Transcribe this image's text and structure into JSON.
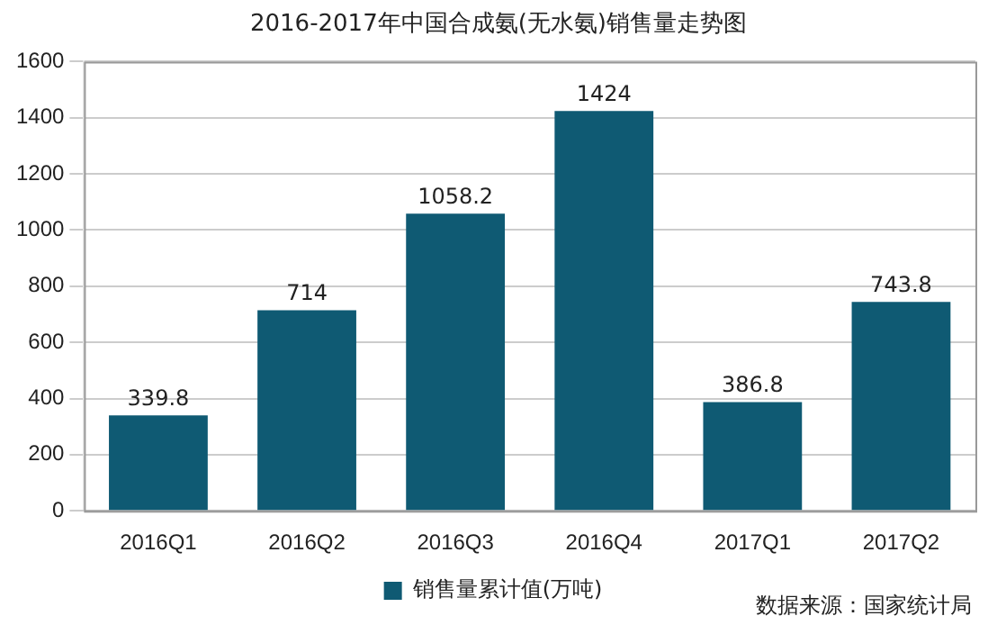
{
  "chart_data": {
    "type": "bar",
    "title": "2016-2017年中国合成氨(无水氨)销售量走势图",
    "categories": [
      "2016Q1",
      "2016Q2",
      "2016Q3",
      "2016Q4",
      "2017Q1",
      "2017Q2"
    ],
    "series": [
      {
        "name": "销售量累计值(万吨)",
        "color": "#0f5a73",
        "values": [
          339.8,
          714,
          1058.2,
          1424,
          386.8,
          743.8
        ]
      }
    ],
    "ylim": [
      0,
      1600
    ],
    "yticks": [
      0,
      200,
      400,
      600,
      800,
      1000,
      1200,
      1400,
      1600
    ],
    "grid": "y",
    "legend": "bottom",
    "data_labels": true,
    "annotations": [
      "数据来源：国家统计局"
    ]
  }
}
